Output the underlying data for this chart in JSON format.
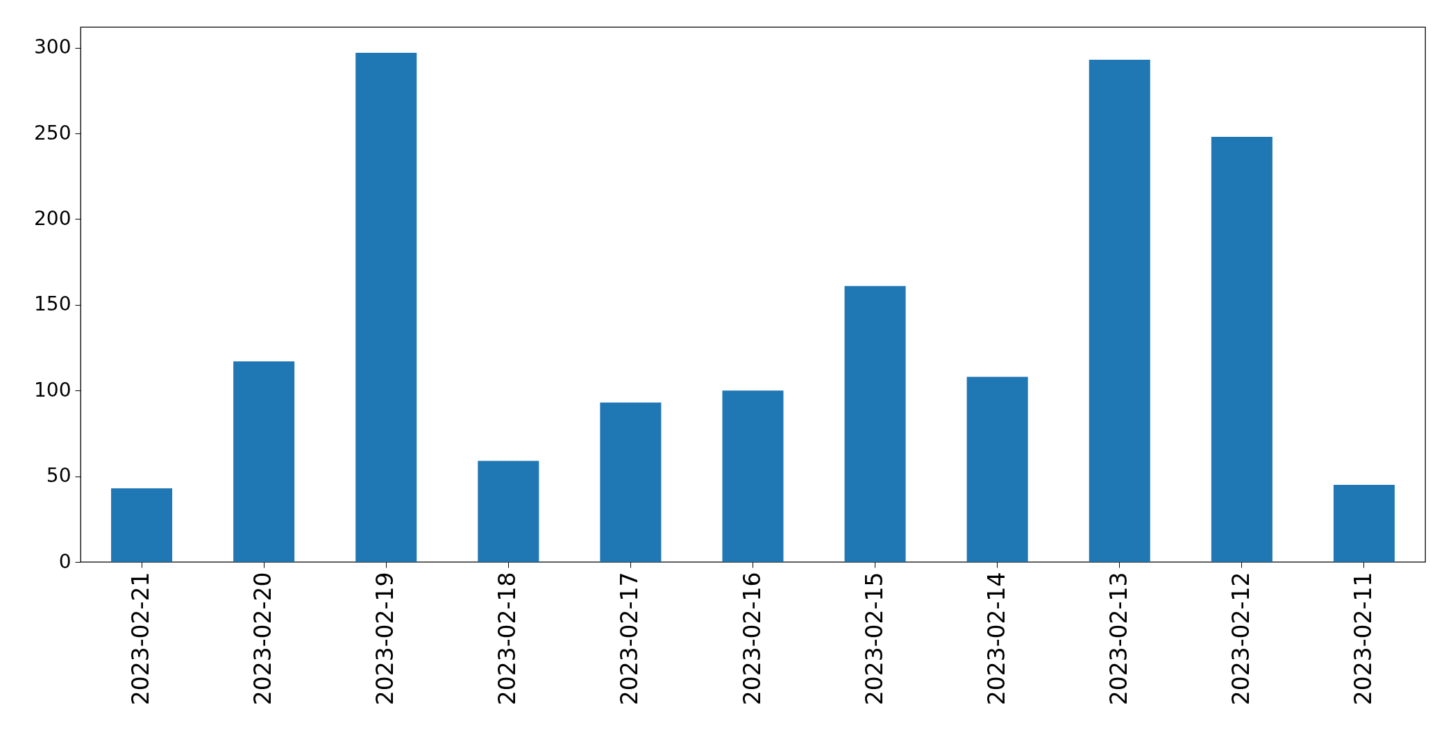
{
  "chart_data": {
    "type": "bar",
    "categories": [
      "2023-02-21",
      "2023-02-20",
      "2023-02-19",
      "2023-02-18",
      "2023-02-17",
      "2023-02-16",
      "2023-02-15",
      "2023-02-14",
      "2023-02-13",
      "2023-02-12",
      "2023-02-11"
    ],
    "values": [
      43,
      117,
      297,
      59,
      93,
      100,
      161,
      108,
      293,
      248,
      45
    ],
    "color": "#1f77b4",
    "ylim": [
      0,
      312
    ],
    "yticks": [
      0,
      50,
      100,
      150,
      200,
      250,
      300
    ],
    "grid": false
  }
}
